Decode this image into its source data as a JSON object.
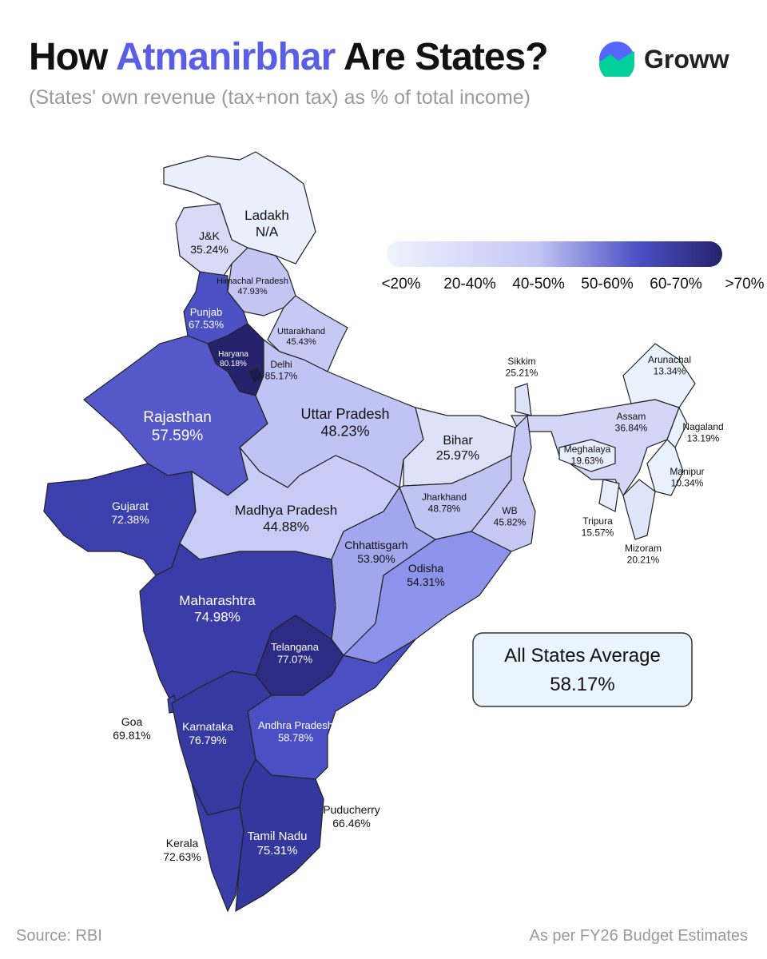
{
  "header": {
    "title": [
      "How",
      "Atmanirbhar",
      "Are States?"
    ],
    "subtitle": "(States' own revenue (tax+non tax) as % of total income)",
    "brand": "Groww"
  },
  "legend": {
    "labels": [
      "<20%",
      "20-40%",
      "40-50%",
      "50-60%",
      "60-70%",
      ">70%"
    ]
  },
  "regions": [
    {
      "name": "Ladakh",
      "value": "N/A",
      "color": "#e9f0fc"
    },
    {
      "name": "J&K",
      "value": "35.24%",
      "color": "#d8daf6"
    },
    {
      "name": "Himachal Pradesh",
      "value": "47.93%",
      "color": "#c3c6f3"
    },
    {
      "name": "Punjab",
      "value": "67.53%",
      "color": "#4b50c2"
    },
    {
      "name": "Haryana",
      "value": "80.18%",
      "color": "#25236b"
    },
    {
      "name": "Delhi",
      "value": "85.17%",
      "color": "#1c1a55"
    },
    {
      "name": "Uttarakhand",
      "value": "45.43%",
      "color": "#c6c9f4"
    },
    {
      "name": "Rajasthan",
      "value": "57.59%",
      "color": "#5558c8"
    },
    {
      "name": "Uttar Pradesh",
      "value": "48.23%",
      "color": "#c0c4f4"
    },
    {
      "name": "Bihar",
      "value": "25.97%",
      "color": "#dde2f8"
    },
    {
      "name": "Sikkim",
      "value": "25.21%",
      "color": "#dde2f8"
    },
    {
      "name": "Arunachal",
      "value": "13.34%",
      "color": "#e9f2fc"
    },
    {
      "name": "Assam",
      "value": "36.84%",
      "color": "#d3d6f6"
    },
    {
      "name": "Nagaland",
      "value": "13.19%",
      "color": "#e9f2fc"
    },
    {
      "name": "Meghalaya",
      "value": "19.63%",
      "color": "#e6eefc"
    },
    {
      "name": "Manipur",
      "value": "10.34%",
      "color": "#e9f2fc"
    },
    {
      "name": "Tripura",
      "value": "15.57%",
      "color": "#e6eefc"
    },
    {
      "name": "Mizoram",
      "value": "20.21%",
      "color": "#e0e6fa"
    },
    {
      "name": "Gujarat",
      "value": "72.38%",
      "color": "#3c3fae"
    },
    {
      "name": "Madhya Pradesh",
      "value": "44.88%",
      "color": "#c8cbf5"
    },
    {
      "name": "Jharkhand",
      "value": "48.78%",
      "color": "#c0c4f3"
    },
    {
      "name": "WB",
      "value": "45.82%",
      "color": "#c6c9f4"
    },
    {
      "name": "Chhattisgarh",
      "value": "53.90%",
      "color": "#a2a6ed"
    },
    {
      "name": "Odisha",
      "value": "54.31%",
      "color": "#8d92ea"
    },
    {
      "name": "Maharashtra",
      "value": "74.98%",
      "color": "#3a3da8"
    },
    {
      "name": "Telangana",
      "value": "77.07%",
      "color": "#2d2c85"
    },
    {
      "name": "Goa",
      "value": "69.81%",
      "color": "#3c3fae"
    },
    {
      "name": "Karnataka",
      "value": "76.79%",
      "color": "#363aa0"
    },
    {
      "name": "Andhra Pradesh",
      "value": "58.78%",
      "color": "#4b4fc4"
    },
    {
      "name": "Puducherry",
      "value": "66.46%",
      "color": "#25236b"
    },
    {
      "name": "Kerala",
      "value": "72.63%",
      "color": "#3a3da8"
    },
    {
      "name": "Tamil Nadu",
      "value": "75.31%",
      "color": "#34389e"
    }
  ],
  "average": {
    "label": "All States Average",
    "value": "58.17%"
  },
  "footer": {
    "source": "Source: RBI",
    "note": "As per FY26 Budget Estimates"
  }
}
